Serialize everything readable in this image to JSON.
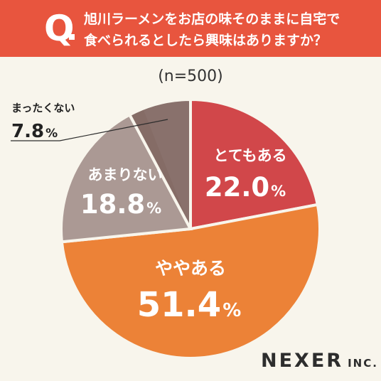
{
  "header": {
    "q_mark": "Q",
    "question_line1": "旭川ラーメンをお店の味そのままに自宅で",
    "question_line2": "食べられるとしたら興味はありますか？"
  },
  "sample_size": "(n=500)",
  "logo": {
    "main": "NEXER",
    "suffix": "INC."
  },
  "chart_data": {
    "type": "pie",
    "start_angle_deg": 0,
    "direction": "clockwise",
    "categories": [
      "とてもある",
      "ややある",
      "あまりない",
      "まったくない"
    ],
    "values": [
      22.0,
      51.4,
      18.8,
      7.8
    ],
    "value_labels": [
      "22.0",
      "51.4",
      "18.8",
      "7.8"
    ],
    "unit": "%",
    "colors": [
      "#d1474a",
      "#ec8237",
      "#ab9994",
      "#856c66"
    ],
    "separator_color": "#f8f5ec"
  }
}
